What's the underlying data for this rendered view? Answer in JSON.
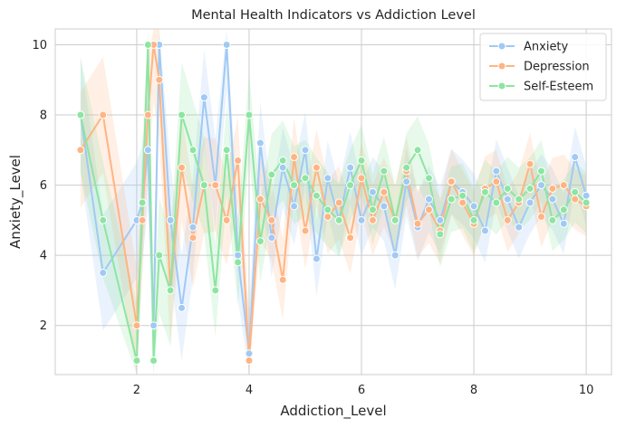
{
  "chart_data": {
    "type": "line",
    "title": "Mental Health Indicators vs Addiction Level",
    "xlabel": "Addiction_Level",
    "ylabel": "Anxiety_Level",
    "xlim": [
      0.55,
      10.45
    ],
    "ylim": [
      0.6,
      10.45
    ],
    "xticks": [
      2,
      4,
      6,
      8,
      10
    ],
    "yticks": [
      2,
      4,
      6,
      8,
      10
    ],
    "grid": true,
    "legend_position": "top-right",
    "series": [
      {
        "name": "Anxiety",
        "color": "#a1c9f4",
        "x": [
          1.0,
          1.4,
          2.0,
          2.1,
          2.2,
          2.3,
          2.4,
          2.6,
          2.8,
          3.0,
          3.2,
          3.4,
          3.6,
          3.8,
          4.0,
          4.2,
          4.4,
          4.6,
          4.8,
          5.0,
          5.2,
          5.4,
          5.6,
          5.8,
          6.0,
          6.2,
          6.4,
          6.6,
          6.8,
          7.0,
          7.2,
          7.4,
          7.6,
          7.8,
          8.0,
          8.2,
          8.4,
          8.6,
          8.8,
          9.0,
          9.2,
          9.4,
          9.6,
          9.8,
          10.0
        ],
        "y": [
          8.0,
          3.5,
          5.0,
          5.5,
          7.0,
          2.0,
          10.0,
          5.0,
          2.5,
          4.8,
          8.5,
          6.0,
          10.0,
          4.0,
          1.2,
          7.2,
          4.5,
          6.5,
          5.4,
          7.0,
          3.9,
          6.2,
          5.0,
          6.5,
          5.0,
          5.8,
          5.4,
          4.0,
          6.1,
          4.8,
          5.6,
          5.0,
          6.1,
          5.8,
          5.4,
          4.7,
          6.4,
          5.6,
          4.8,
          5.5,
          6.0,
          5.6,
          4.9,
          6.8,
          5.7
        ]
      },
      {
        "name": "Depression",
        "color": "#ffb482",
        "x": [
          1.0,
          1.4,
          2.0,
          2.1,
          2.2,
          2.3,
          2.4,
          2.6,
          2.8,
          3.0,
          3.2,
          3.4,
          3.6,
          3.8,
          4.0,
          4.2,
          4.4,
          4.6,
          4.8,
          5.0,
          5.2,
          5.4,
          5.6,
          5.8,
          6.0,
          6.2,
          6.4,
          6.6,
          6.8,
          7.0,
          7.2,
          7.4,
          7.6,
          7.8,
          8.0,
          8.2,
          8.4,
          8.6,
          8.8,
          9.0,
          9.2,
          9.4,
          9.6,
          9.8,
          10.0
        ],
        "y": [
          7.0,
          8.0,
          2.0,
          5.0,
          8.0,
          10.0,
          9.0,
          3.0,
          6.5,
          4.5,
          6.0,
          6.0,
          5.0,
          6.7,
          1.0,
          5.6,
          5.0,
          3.3,
          6.8,
          4.7,
          6.5,
          5.1,
          5.5,
          4.5,
          6.2,
          5.0,
          5.8,
          5.0,
          6.4,
          4.9,
          5.3,
          4.7,
          6.1,
          5.5,
          4.9,
          5.9,
          6.1,
          5.0,
          5.5,
          6.6,
          5.1,
          5.9,
          6.0,
          5.6,
          5.4
        ]
      },
      {
        "name": "Self-Esteem",
        "color": "#8de5a1",
        "x": [
          1.0,
          1.4,
          2.0,
          2.1,
          2.2,
          2.3,
          2.4,
          2.6,
          2.8,
          3.0,
          3.2,
          3.4,
          3.6,
          3.8,
          4.0,
          4.2,
          4.4,
          4.6,
          4.8,
          5.0,
          5.2,
          5.4,
          5.6,
          5.8,
          6.0,
          6.2,
          6.4,
          6.6,
          6.8,
          7.0,
          7.2,
          7.4,
          7.6,
          7.8,
          8.0,
          8.2,
          8.4,
          8.6,
          8.8,
          9.0,
          9.2,
          9.4,
          9.6,
          9.8,
          10.0
        ],
        "y": [
          8.0,
          5.0,
          1.0,
          5.5,
          10.0,
          1.0,
          4.0,
          3.0,
          8.0,
          7.0,
          6.0,
          3.0,
          7.0,
          3.8,
          8.0,
          4.4,
          6.3,
          6.7,
          6.0,
          6.2,
          5.7,
          5.3,
          5.0,
          6.0,
          6.7,
          5.3,
          6.4,
          5.0,
          6.5,
          7.0,
          6.2,
          4.6,
          5.6,
          5.7,
          5.0,
          5.8,
          5.5,
          5.9,
          5.6,
          5.9,
          6.4,
          5.0,
          5.3,
          5.8,
          5.5
        ]
      }
    ]
  }
}
